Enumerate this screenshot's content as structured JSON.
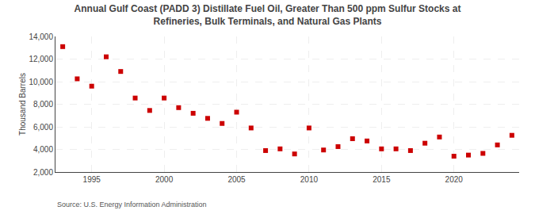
{
  "chart_data": {
    "type": "scatter",
    "title": "Annual Gulf Coast (PADD 3) Distillate Fuel Oil, Greater Than 500 ppm Sulfur Stocks at\nRefineries, Bulk Terminals, and Natural Gas Plants",
    "ylabel": "Thousand Barrels",
    "source": "Source: U.S. Energy Information Administration",
    "x": [
      1993,
      1994,
      1995,
      1996,
      1997,
      1998,
      1999,
      2000,
      2001,
      2002,
      2003,
      2004,
      2005,
      2006,
      2007,
      2008,
      2009,
      2010,
      2011,
      2012,
      2013,
      2014,
      2015,
      2016,
      2017,
      2018,
      2019,
      2020,
      2021,
      2022,
      2023,
      2024
    ],
    "values": [
      13100,
      10250,
      9600,
      12200,
      10900,
      8550,
      7450,
      8550,
      7700,
      7200,
      6750,
      6300,
      7300,
      5900,
      3900,
      4050,
      3600,
      5900,
      3950,
      4250,
      4950,
      4750,
      4050,
      4050,
      3900,
      4550,
      5100,
      3400,
      3500,
      3650,
      4400,
      5250
    ],
    "color": "#cc0000",
    "marker": "square",
    "xlim": [
      1992.5,
      2024.5
    ],
    "xticks": [
      1995,
      2000,
      2005,
      2010,
      2015,
      2020
    ],
    "ylim": [
      2000,
      14000
    ],
    "yticks": [
      {
        "value": 2000,
        "label": "2,000"
      },
      {
        "value": 4000,
        "label": "4,000"
      },
      {
        "value": 6000,
        "label": "6,000"
      },
      {
        "value": 8000,
        "label": "8,000"
      },
      {
        "value": 10000,
        "label": "10,000"
      },
      {
        "value": 12000,
        "label": "12,000"
      },
      {
        "value": 14000,
        "label": "14,000"
      }
    ],
    "grid": true
  }
}
